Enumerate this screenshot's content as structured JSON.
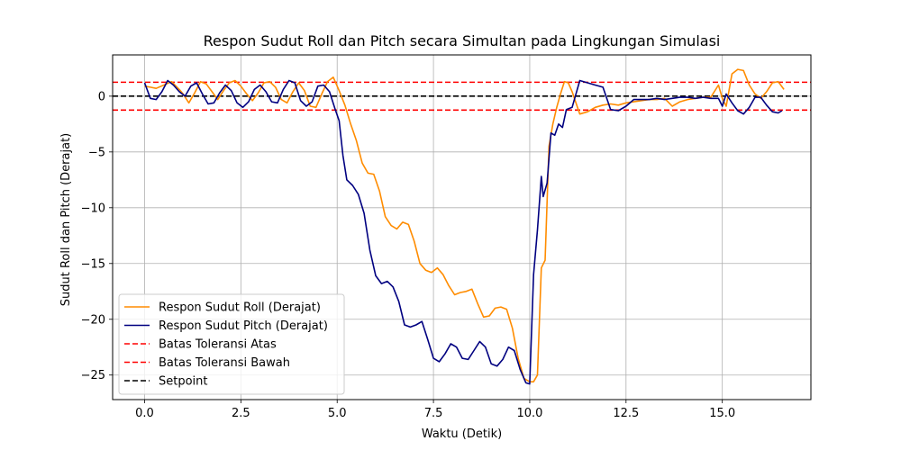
{
  "chart_data": {
    "type": "line",
    "title": "Respon Sudut Roll dan Pitch secara Simultan pada Lingkungan Simulasi",
    "xlabel": "Waktu (Detik)",
    "ylabel": "Sudut Roll dan Pitch (Derajat)",
    "xlim": [
      -0.83,
      17.3
    ],
    "ylim": [
      -27.2,
      3.7
    ],
    "xticks": [
      0.0,
      2.5,
      5.0,
      7.5,
      10.0,
      12.5,
      15.0
    ],
    "xtick_labels": [
      "0.0",
      "2.5",
      "5.0",
      "7.5",
      "10.0",
      "12.5",
      "15.0"
    ],
    "yticks": [
      0,
      -5,
      -10,
      -15,
      -20,
      -25
    ],
    "ytick_labels": [
      "0",
      "−5",
      "−10",
      "−15",
      "−20",
      "−25"
    ],
    "grid": true,
    "legend_position": "lower-left",
    "series": [
      {
        "name": "Respon Sudut Roll (Derajat)",
        "color": "#ff8c00",
        "style": "solid",
        "x": [
          0.0,
          0.15,
          0.3,
          0.5,
          0.7,
          0.9,
          1.0,
          1.15,
          1.3,
          1.45,
          1.6,
          1.75,
          1.9,
          2.05,
          2.2,
          2.35,
          2.5,
          2.65,
          2.8,
          2.95,
          3.1,
          3.25,
          3.4,
          3.55,
          3.7,
          3.85,
          4.0,
          4.15,
          4.3,
          4.45,
          4.6,
          4.75,
          4.9,
          5.05,
          5.2,
          5.35,
          5.5,
          5.65,
          5.8,
          5.95,
          6.1,
          6.25,
          6.4,
          6.55,
          6.7,
          6.85,
          7.0,
          7.15,
          7.3,
          7.45,
          7.6,
          7.75,
          7.9,
          8.05,
          8.2,
          8.35,
          8.5,
          8.65,
          8.8,
          8.95,
          9.1,
          9.25,
          9.4,
          9.55,
          9.7,
          9.85,
          10.0,
          10.1,
          10.2,
          10.3,
          10.4,
          10.5,
          10.6,
          10.7,
          10.8,
          10.9,
          11.0,
          11.1,
          11.3,
          11.5,
          11.7,
          11.9,
          12.1,
          12.3,
          12.5,
          12.7,
          12.9,
          13.1,
          13.3,
          13.5,
          13.7,
          13.9,
          14.1,
          14.3,
          14.5,
          14.7,
          14.9,
          15.0,
          15.1,
          15.25,
          15.4,
          15.55,
          15.7,
          15.85,
          16.0,
          16.15,
          16.3,
          16.45,
          16.6
        ],
        "y": [
          0.9,
          0.8,
          0.7,
          1.0,
          1.3,
          0.6,
          0.2,
          -0.6,
          0.3,
          1.3,
          1.1,
          0.4,
          -0.3,
          0.5,
          1.2,
          1.4,
          0.9,
          0.2,
          -0.4,
          0.3,
          1.2,
          1.3,
          0.8,
          -0.3,
          -0.6,
          0.4,
          1.2,
          0.5,
          -0.9,
          -1.0,
          0.2,
          1.3,
          1.7,
          0.5,
          -0.8,
          -2.5,
          -4.0,
          -6.0,
          -6.9,
          -7.0,
          -8.5,
          -10.8,
          -11.6,
          -11.9,
          -11.3,
          -11.5,
          -13.0,
          -15.0,
          -15.6,
          -15.8,
          -15.4,
          -16.0,
          -17.0,
          -17.8,
          -17.6,
          -17.5,
          -17.3,
          -18.6,
          -19.8,
          -19.7,
          -19.0,
          -18.9,
          -19.1,
          -20.8,
          -23.5,
          -25.3,
          -25.6,
          -25.6,
          -25.0,
          -15.4,
          -14.7,
          -4.5,
          -2.5,
          -1.0,
          0.2,
          1.3,
          1.2,
          0.4,
          -1.6,
          -1.4,
          -1.0,
          -0.8,
          -0.7,
          -0.8,
          -0.6,
          -0.5,
          -0.4,
          -0.3,
          -0.3,
          -0.2,
          -0.9,
          -0.5,
          -0.3,
          -0.2,
          -0.1,
          -0.1,
          1.0,
          -0.2,
          -0.9,
          2.0,
          2.4,
          2.3,
          1.0,
          0.2,
          -0.2,
          0.4,
          1.2,
          1.3,
          0.6
        ]
      },
      {
        "name": "Respon Sudut Pitch (Derajat)",
        "color": "#000080",
        "style": "solid",
        "x": [
          0.0,
          0.15,
          0.3,
          0.45,
          0.6,
          0.75,
          0.9,
          1.05,
          1.2,
          1.35,
          1.5,
          1.65,
          1.8,
          1.95,
          2.1,
          2.25,
          2.4,
          2.55,
          2.7,
          2.85,
          3.0,
          3.15,
          3.3,
          3.45,
          3.6,
          3.75,
          3.9,
          4.05,
          4.2,
          4.35,
          4.5,
          4.65,
          4.8,
          4.95,
          5.05,
          5.15,
          5.25,
          5.4,
          5.55,
          5.7,
          5.85,
          6.0,
          6.15,
          6.3,
          6.45,
          6.6,
          6.75,
          6.9,
          7.05,
          7.2,
          7.35,
          7.5,
          7.65,
          7.8,
          7.95,
          8.1,
          8.25,
          8.4,
          8.55,
          8.7,
          8.85,
          9.0,
          9.15,
          9.3,
          9.45,
          9.6,
          9.75,
          9.9,
          10.0,
          10.1,
          10.2,
          10.3,
          10.35,
          10.45,
          10.55,
          10.65,
          10.75,
          10.85,
          10.95,
          11.1,
          11.3,
          11.5,
          11.7,
          11.9,
          12.1,
          12.3,
          12.5,
          12.7,
          12.9,
          13.1,
          13.3,
          13.5,
          13.7,
          13.9,
          14.1,
          14.3,
          14.5,
          14.7,
          14.9,
          15.0,
          15.1,
          15.25,
          15.4,
          15.55,
          15.7,
          15.85,
          16.0,
          16.15,
          16.3,
          16.45,
          16.55
        ],
        "y": [
          1.2,
          -0.2,
          -0.3,
          0.4,
          1.4,
          1.0,
          0.4,
          0.0,
          0.9,
          1.2,
          0.2,
          -0.7,
          -0.6,
          0.3,
          1.0,
          0.5,
          -0.6,
          -1.0,
          -0.5,
          0.6,
          1.0,
          0.4,
          -0.5,
          -0.6,
          0.6,
          1.4,
          1.2,
          -0.4,
          -0.9,
          -0.5,
          0.9,
          1.0,
          0.4,
          -1.2,
          -2.2,
          -5.3,
          -7.5,
          -8.0,
          -8.8,
          -10.5,
          -13.8,
          -16.1,
          -16.8,
          -16.6,
          -17.1,
          -18.4,
          -20.5,
          -20.7,
          -20.5,
          -20.2,
          -21.8,
          -23.5,
          -23.8,
          -23.1,
          -22.2,
          -22.5,
          -23.5,
          -23.6,
          -22.8,
          -22.0,
          -22.5,
          -24.0,
          -24.2,
          -23.6,
          -22.5,
          -22.8,
          -24.5,
          -25.7,
          -25.8,
          -16.0,
          -12.0,
          -7.2,
          -9.0,
          -7.8,
          -3.3,
          -3.5,
          -2.5,
          -2.8,
          -1.2,
          -1.0,
          1.4,
          1.2,
          1.0,
          0.8,
          -1.2,
          -1.3,
          -0.9,
          -0.3,
          -0.3,
          -0.3,
          -0.2,
          -0.3,
          -0.2,
          -0.1,
          -0.1,
          -0.2,
          -0.1,
          -0.2,
          -0.2,
          -0.9,
          0.2,
          -0.6,
          -1.3,
          -1.6,
          -1.0,
          -0.1,
          -0.1,
          -0.8,
          -1.4,
          -1.5,
          -1.3
        ]
      },
      {
        "name": "Batas Toleransi Atas",
        "color": "#ff0000",
        "style": "dashed",
        "y": 1.25
      },
      {
        "name": "Batas Toleransi Bawah",
        "color": "#ff0000",
        "style": "dashed",
        "y": -1.25
      },
      {
        "name": "Setpoint",
        "color": "#000000",
        "style": "dashed",
        "y": 0
      }
    ]
  }
}
